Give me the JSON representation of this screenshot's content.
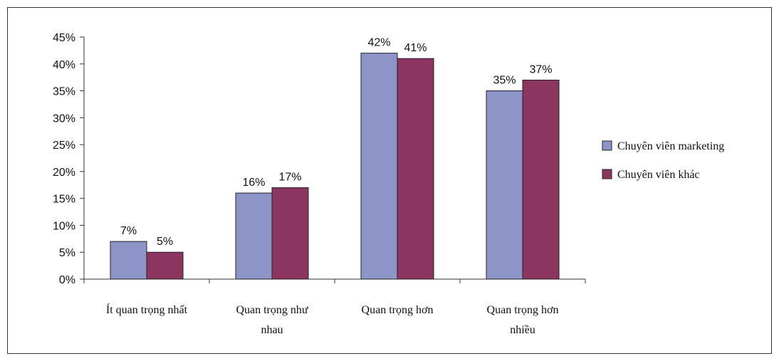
{
  "chart_data": {
    "type": "bar",
    "categories": [
      [
        "Ít quan trọng nhất"
      ],
      [
        "Quan trọng như",
        "nhau"
      ],
      [
        "Quan trọng hơn"
      ],
      [
        "Quan trọng hơn",
        "nhiều"
      ]
    ],
    "series": [
      {
        "name": "Chuyên viên marketing",
        "color": "#8C94C8",
        "values": [
          7,
          16,
          42,
          35
        ],
        "labels": [
          "7%",
          "16%",
          "42%",
          "35%"
        ]
      },
      {
        "name": "Chuyên viên khác",
        "color": "#8C3560",
        "values": [
          5,
          17,
          41,
          37
        ],
        "labels": [
          "5%",
          "17%",
          "41%",
          "37%"
        ]
      }
    ],
    "yticks": [
      "0%",
      "5%",
      "10%",
      "15%",
      "20%",
      "25%",
      "30%",
      "35%",
      "40%",
      "45%"
    ],
    "ylim": [
      0,
      45
    ],
    "grid": false,
    "legend_position": "right"
  }
}
